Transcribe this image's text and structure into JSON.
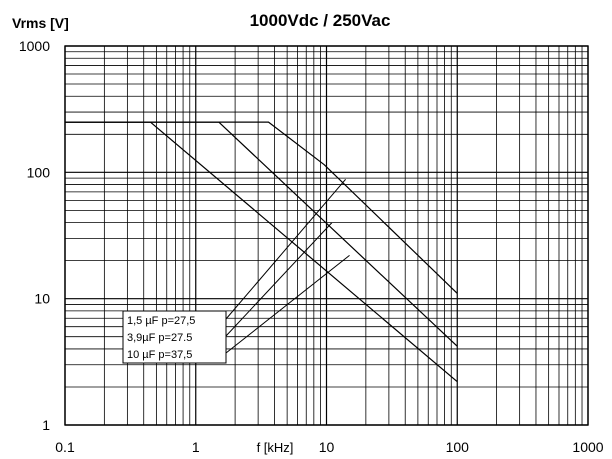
{
  "chart_data": {
    "type": "line",
    "title": "1000Vdc / 250Vac",
    "xlabel": "f [kHz]",
    "ylabel": "Vrms [V]",
    "x_scale": "log",
    "y_scale": "log",
    "xlim": [
      0.1,
      1000
    ],
    "ylim": [
      1,
      1000
    ],
    "x_ticks": [
      "0.1",
      "1",
      "10",
      "100",
      "1000"
    ],
    "y_ticks": [
      "1",
      "10",
      "100",
      "1000"
    ],
    "grid": true,
    "legend_position": "lower-left",
    "legend": [
      "1,5 µF  p=27,5",
      "3,9µF  p=27.5",
      "10 µF  p=37,5"
    ],
    "series": [
      {
        "name": "1,5 µF  p=27,5",
        "x": [
          0.1,
          3.6,
          9.6,
          100
        ],
        "y": [
          250,
          250,
          115,
          11
        ]
      },
      {
        "name": "3,9µF  p=27.5",
        "x": [
          0.1,
          1.5,
          100
        ],
        "y": [
          250,
          250,
          4.2
        ]
      },
      {
        "name": "10 µF  p=37,5",
        "x": [
          0.1,
          0.45,
          100
        ],
        "y": [
          250,
          250,
          2.2
        ]
      }
    ]
  }
}
